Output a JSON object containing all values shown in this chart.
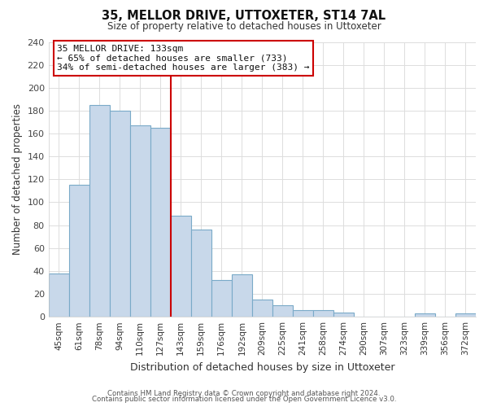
{
  "title": "35, MELLOR DRIVE, UTTOXETER, ST14 7AL",
  "subtitle": "Size of property relative to detached houses in Uttoxeter",
  "xlabel": "Distribution of detached houses by size in Uttoxeter",
  "ylabel": "Number of detached properties",
  "footnote1": "Contains HM Land Registry data © Crown copyright and database right 2024.",
  "footnote2": "Contains public sector information licensed under the Open Government Licence v3.0.",
  "bar_labels": [
    "45sqm",
    "61sqm",
    "78sqm",
    "94sqm",
    "110sqm",
    "127sqm",
    "143sqm",
    "159sqm",
    "176sqm",
    "192sqm",
    "209sqm",
    "225sqm",
    "241sqm",
    "258sqm",
    "274sqm",
    "290sqm",
    "307sqm",
    "323sqm",
    "339sqm",
    "356sqm",
    "372sqm"
  ],
  "bar_heights": [
    38,
    115,
    185,
    180,
    167,
    165,
    88,
    76,
    32,
    37,
    15,
    10,
    6,
    6,
    4,
    0,
    0,
    0,
    3,
    0,
    3
  ],
  "bar_color": "#c8d8ea",
  "bar_edge_color": "#7aaac8",
  "vline_x": 6,
  "vline_color": "#cc0000",
  "annotation_title": "35 MELLOR DRIVE: 133sqm",
  "annotation_line1": "← 65% of detached houses are smaller (733)",
  "annotation_line2": "34% of semi-detached houses are larger (383) →",
  "annotation_box_facecolor": "#ffffff",
  "annotation_box_edgecolor": "#cc0000",
  "ylim": [
    0,
    240
  ],
  "yticks": [
    0,
    20,
    40,
    60,
    80,
    100,
    120,
    140,
    160,
    180,
    200,
    220,
    240
  ],
  "background_color": "#ffffff",
  "plot_bg_color": "#ffffff",
  "grid_color": "#dddddd"
}
